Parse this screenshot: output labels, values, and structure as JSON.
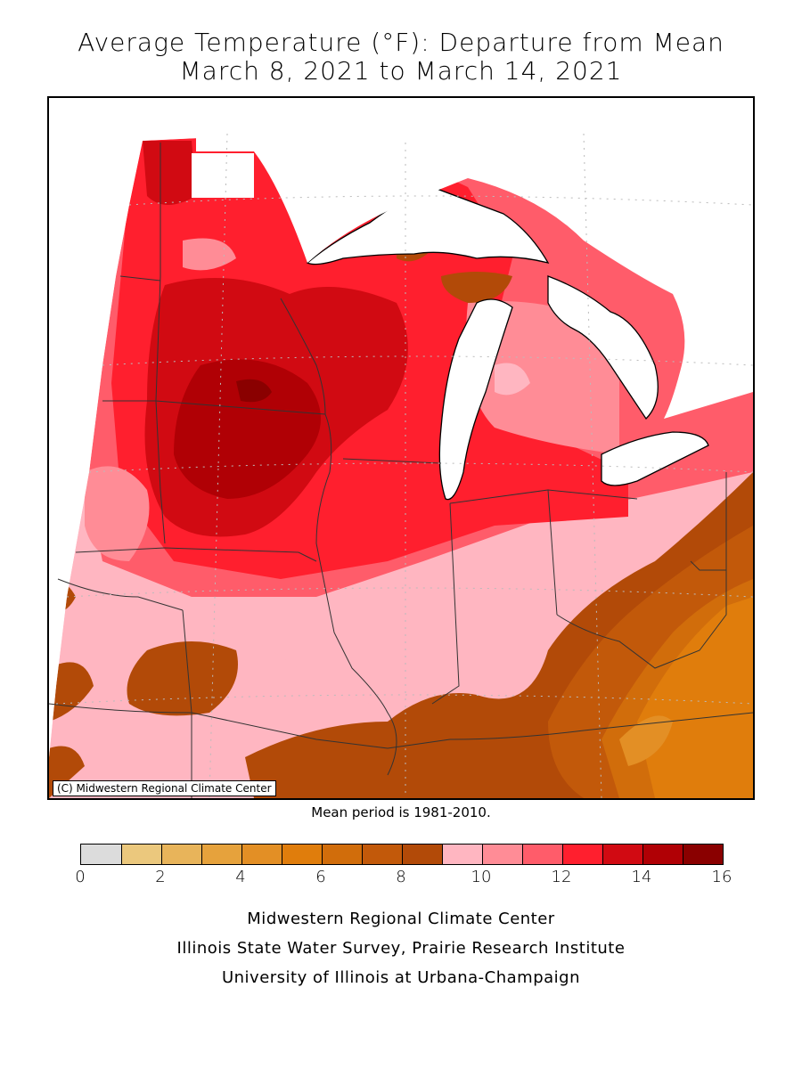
{
  "title": {
    "line1": "Average Temperature (°F): Departure from Mean",
    "line2": "March 8, 2021 to March 14, 2021"
  },
  "map": {
    "credit": "(C) Midwestern Regional Climate Center"
  },
  "mean_period": "Mean period is 1981-2010.",
  "legend": {
    "colors": [
      "#dcdcdc",
      "#ebc87d",
      "#e8b45a",
      "#e6a23c",
      "#e38f25",
      "#e07d0c",
      "#d16d0b",
      "#c2590a",
      "#b24a08",
      "#ffb6c1",
      "#ff8c96",
      "#ff5c6a",
      "#ff1f2e",
      "#d10a12",
      "#b00005",
      "#8a0000"
    ],
    "ticks": [
      "0",
      "2",
      "4",
      "6",
      "8",
      "10",
      "12",
      "14",
      "16"
    ]
  },
  "footer": {
    "line1": "Midwestern Regional Climate Center",
    "line2": "Illinois State Water Survey, Prairie Research Institute",
    "line3": "University of Illinois at Urbana-Champaign"
  }
}
